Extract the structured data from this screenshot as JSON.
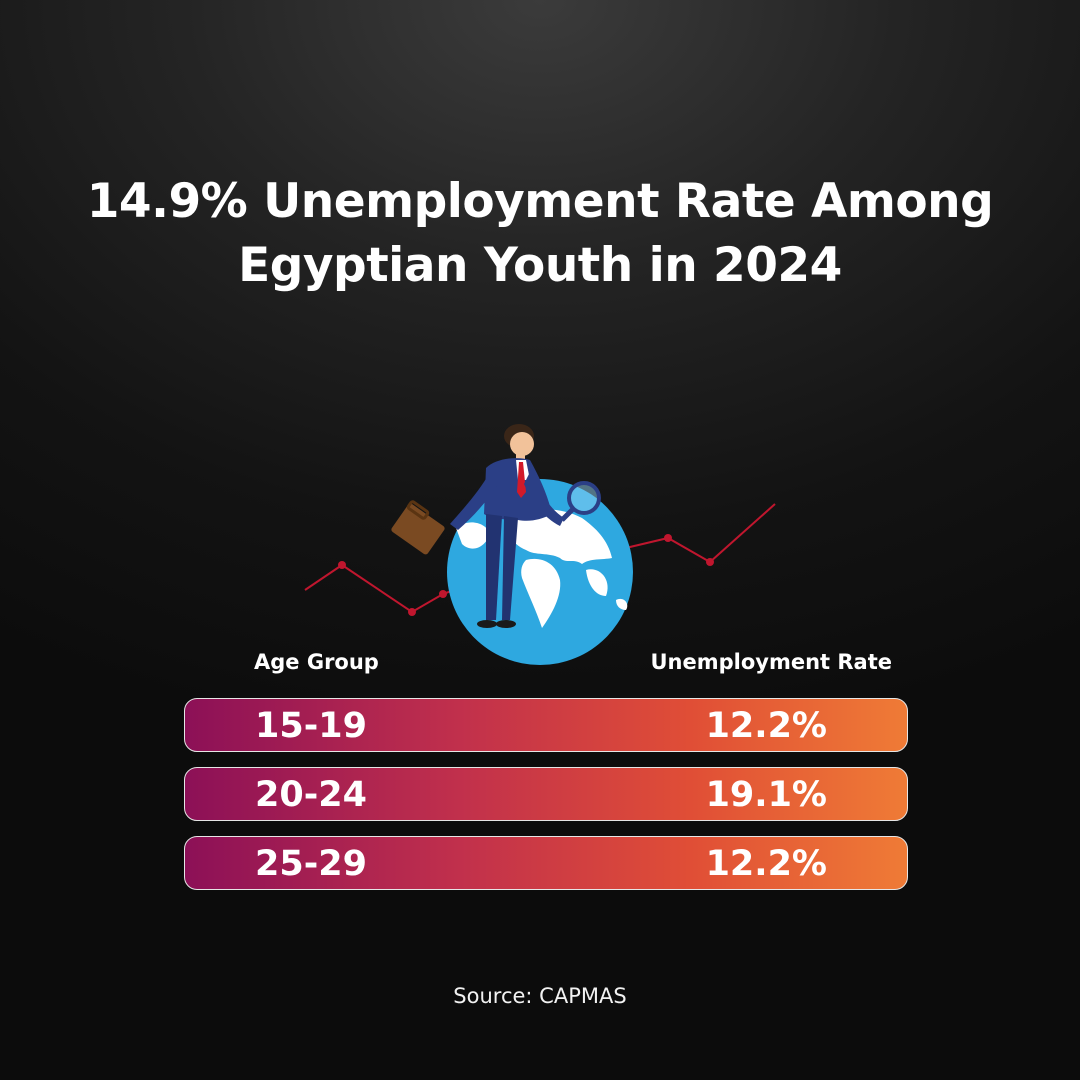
{
  "title_line1": "14.9% Unemployment Rate Among",
  "title_line2": "Egyptian Youth in 2024",
  "table_header": {
    "left": "Age Group",
    "right": "Unemployment Rate"
  },
  "rows": [
    {
      "age": "15-19",
      "rate": "12.2%"
    },
    {
      "age": "20-24",
      "rate": "19.1%"
    },
    {
      "age": "25-29",
      "rate": "12.2%"
    }
  ],
  "source": "Source: CAPMAS",
  "colors": {
    "bar_start": "#8c1057",
    "bar_end": "#ef7b36",
    "trend_line": "#c0162e",
    "globe_ocean": "#2ea8e0"
  },
  "chart_data": {
    "type": "table",
    "columns": [
      "Age Group",
      "Unemployment Rate"
    ],
    "categories": [
      "15-19",
      "20-24",
      "25-29"
    ],
    "values": [
      12.2,
      19.1,
      12.2
    ]
  }
}
